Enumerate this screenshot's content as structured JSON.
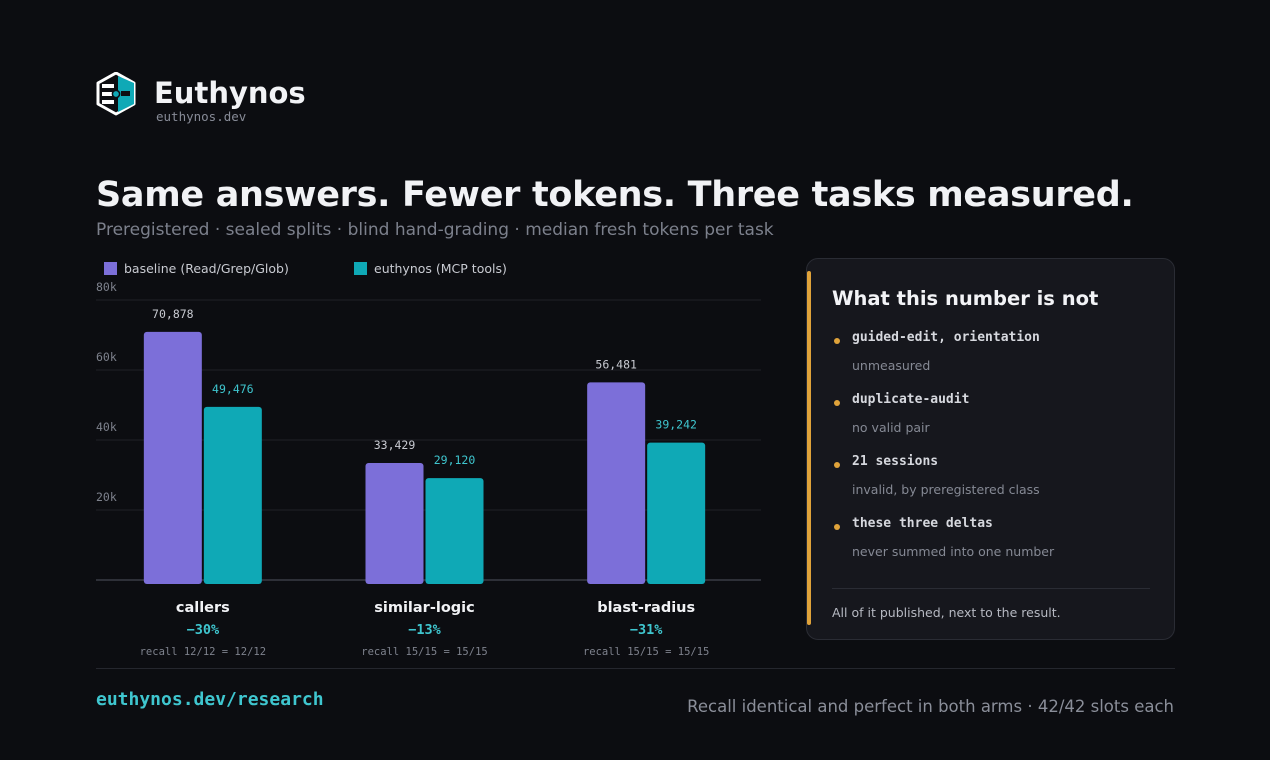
{
  "brand": {
    "name": "Euthynos",
    "domain": "euthynos.dev"
  },
  "headline": "Same answers. Fewer tokens. Three tasks measured.",
  "subline": "Preregistered · sealed splits · blind hand-grading · median fresh tokens per task",
  "colors": {
    "baseline": "#7c6fd9",
    "euthynos": "#0fa9b6",
    "accent": "#e0a33a",
    "link": "#3fc6cf",
    "delta": "#3fc6cf"
  },
  "chart_data": {
    "type": "bar",
    "ylim": [
      0,
      80000
    ],
    "yticks": [
      20000,
      40000,
      60000,
      80000
    ],
    "ytick_labels": [
      "20k",
      "40k",
      "60k",
      "80k"
    ],
    "grid": true,
    "legend_placement": "top-left",
    "categories": [
      "callers",
      "similar-logic",
      "blast-radius"
    ],
    "series": [
      {
        "name": "baseline (Read/Grep/Glob)",
        "values": [
          70878,
          33429,
          56481
        ],
        "labels": [
          "70,878",
          "33,429",
          "56,481"
        ]
      },
      {
        "name": "euthynos (MCP tools)",
        "values": [
          49476,
          29120,
          39242
        ],
        "labels": [
          "49,476",
          "29,120",
          "39,242"
        ]
      }
    ],
    "deltas": [
      "−30%",
      "−13%",
      "−31%"
    ],
    "recall": [
      "recall 12/12 = 12/12",
      "recall 15/15 = 15/15",
      "recall 15/15 = 15/15"
    ]
  },
  "panel": {
    "title": "What this number is not",
    "items": [
      {
        "label": "guided-edit, orientation",
        "desc": "unmeasured"
      },
      {
        "label": "duplicate-audit",
        "desc": "no valid pair"
      },
      {
        "label": "21 sessions",
        "desc": "invalid, by preregistered class"
      },
      {
        "label": "these three deltas",
        "desc": "never summed into one number"
      }
    ],
    "footer": "All of it published, next to the result."
  },
  "footer": {
    "link": "euthynos.dev/research",
    "note": "Recall identical and perfect in both arms · 42/42 slots each"
  }
}
